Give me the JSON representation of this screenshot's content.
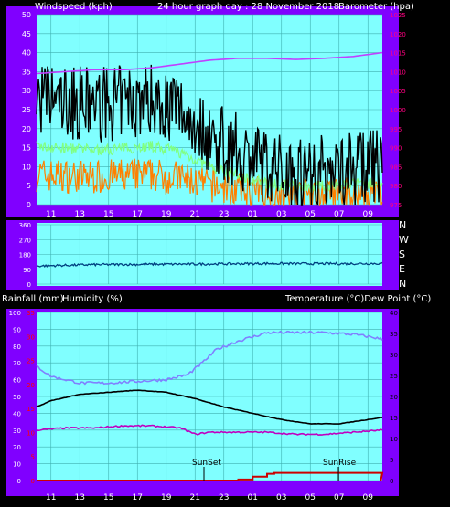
{
  "header": {
    "left": "Windspeed (kph)",
    "center": "24 hour graph day : 28 November 2018",
    "right": "Barometer (hpa)"
  },
  "mid_header": {
    "left_a": "Rainfall (mm)",
    "left_b": "Humidity (%)",
    "right": "Temperature (°C)Dew Point (°C)"
  },
  "markers": {
    "sunset": "SunSet",
    "sunrise": "SunRise"
  },
  "compass": [
    "N",
    "W",
    "S",
    "E",
    "N"
  ],
  "colors": {
    "frame": "#8000ff",
    "plot_bg": "#80ffff",
    "wind": "#000000",
    "wind_avg": "#80ff80",
    "wind_gust_band": "#ff8000",
    "barometer": "#c040ff",
    "direction": "#004080",
    "humidity": "#8080ff",
    "temperature": "#000000",
    "dewpoint": "#c000c0",
    "rainfall": "#cc0000",
    "left_axis_text": "#ffffff",
    "right_axis_text_top": "#ff0080",
    "rain_axis_text": "#ff0000"
  },
  "chart_data": [
    {
      "type": "line",
      "title": "24 hour graph day : 28 November 2018",
      "x_ticks": [
        "11",
        "13",
        "15",
        "17",
        "19",
        "21",
        "23",
        "01",
        "03",
        "05",
        "07",
        "09"
      ],
      "y_left_label": "Windspeed (kph)",
      "y_left_ticks": [
        0,
        5,
        10,
        15,
        20,
        25,
        30,
        35,
        40,
        45,
        50
      ],
      "y_left_lim": [
        0,
        50
      ],
      "y_right_label": "Barometer (hpa)",
      "y_right_ticks": [
        975,
        980,
        985,
        990,
        995,
        1000,
        1005,
        1010,
        1015,
        1020,
        1025
      ],
      "y_right_lim": [
        975,
        1025
      ],
      "series": [
        {
          "name": "Windspeed (kph)",
          "x": [
            9,
            11,
            13,
            15,
            17,
            19,
            21,
            23,
            25,
            27,
            29,
            31,
            33
          ],
          "y": [
            28,
            27,
            26,
            27,
            28,
            25,
            18,
            14,
            10,
            9,
            9,
            10,
            10
          ]
        },
        {
          "name": "Barometer (hpa)",
          "x": [
            9,
            11,
            13,
            15,
            17,
            19,
            21,
            23,
            25,
            27,
            29,
            31,
            33
          ],
          "y": [
            1009.5,
            1010,
            1010.5,
            1010.5,
            1011,
            1012,
            1013,
            1013.5,
            1013.5,
            1013.2,
            1013.5,
            1014,
            1015
          ]
        }
      ]
    },
    {
      "type": "line",
      "x_ticks": [
        "11",
        "13",
        "15",
        "17",
        "19",
        "21",
        "23",
        "01",
        "03",
        "05",
        "07",
        "09"
      ],
      "y_left_ticks": [
        0,
        90,
        180,
        270,
        360
      ],
      "y_right_ticks": [
        "N",
        "W",
        "S",
        "E",
        "N"
      ],
      "y_lim": [
        0,
        360
      ],
      "series": [
        {
          "name": "Wind direction",
          "x": [
            9,
            13,
            17,
            21,
            25,
            29,
            33
          ],
          "y": [
            110,
            118,
            120,
            122,
            125,
            124,
            125
          ]
        }
      ]
    },
    {
      "type": "line",
      "x_ticks": [
        "11",
        "13",
        "15",
        "17",
        "19",
        "21",
        "23",
        "01",
        "03",
        "05",
        "07",
        "09"
      ],
      "y_left_label": "Humidity (%)",
      "y_left_ticks": [
        0,
        10,
        20,
        30,
        40,
        50,
        60,
        70,
        80,
        90,
        100
      ],
      "y_left_lim": [
        0,
        100
      ],
      "y_rain_label": "Rainfall (mm)",
      "y_rain_ticks": [
        0,
        5,
        10,
        15,
        20,
        25,
        30,
        35
      ],
      "y_right_label": "Temperature (°C)Dew Point (°C)",
      "y_right_ticks": [
        0,
        5,
        10,
        15,
        20,
        25,
        30,
        35,
        40
      ],
      "y_right_lim": [
        0,
        40
      ],
      "series": [
        {
          "name": "Humidity (%)",
          "x": [
            9,
            10,
            12,
            14,
            16,
            18,
            19.5,
            20.5,
            21.5,
            23,
            25,
            27,
            29,
            31,
            32.5,
            33
          ],
          "y": [
            68,
            62,
            58,
            58,
            59,
            60,
            63,
            70,
            78,
            83,
            88,
            88,
            88,
            87,
            85,
            84
          ]
        },
        {
          "name": "Temperature (°C)",
          "x": [
            9,
            10,
            12,
            14,
            16,
            18,
            20,
            22,
            24,
            26,
            28,
            30,
            32,
            33
          ],
          "y": [
            17.5,
            19,
            20.5,
            21,
            21.5,
            21,
            19.5,
            17.5,
            16,
            14.5,
            13.5,
            13.5,
            14.5,
            15
          ]
        },
        {
          "name": "Dew Point (°C)",
          "x": [
            9,
            11,
            13,
            15,
            17,
            19,
            20,
            21,
            23,
            25,
            27,
            29,
            31,
            33
          ],
          "y": [
            12,
            12.5,
            12.5,
            13,
            13,
            12.5,
            11,
            11.5,
            11.5,
            11.5,
            11,
            11,
            11.5,
            12
          ]
        },
        {
          "name": "Rainfall (mm)",
          "x": [
            9,
            19,
            22,
            23,
            24,
            25,
            25.5,
            33
          ],
          "y": [
            0,
            0,
            0,
            0.2,
            0.8,
            1.4,
            1.6,
            1.6
          ]
        }
      ],
      "annotations": [
        {
          "text": "SunSet",
          "x": 20.5
        },
        {
          "text": "SunRise",
          "x": 29.5
        }
      ]
    }
  ]
}
